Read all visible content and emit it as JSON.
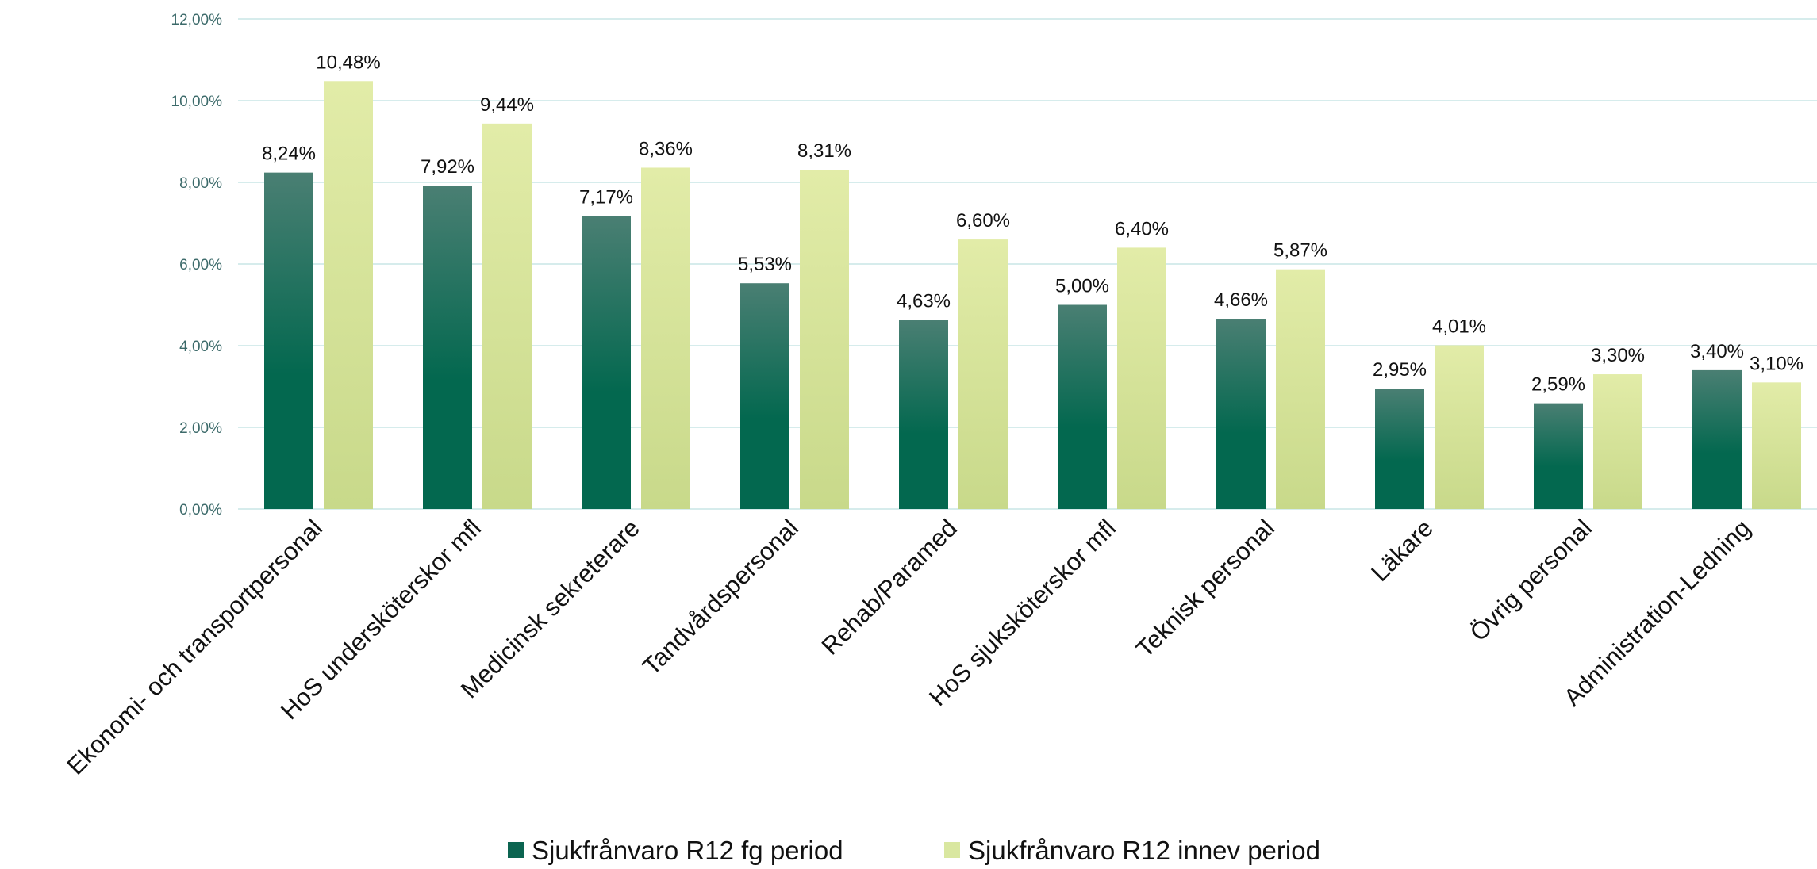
{
  "chart_data": {
    "type": "bar",
    "categories": [
      "Ekonomi- och transportpersonal",
      "HoS undersköterskor mfl",
      "Medicinsk sekreterare",
      "Tandvårdspersonal",
      "Rehab/Paramed",
      "HoS sjuksköterskor mfl",
      "Teknisk personal",
      "Läkare",
      "Övrig personal",
      "Administration-Ledning"
    ],
    "series": [
      {
        "name": "Sjukfrånvaro R12 fg period",
        "values": [
          8.24,
          7.92,
          7.17,
          5.53,
          4.63,
          5.0,
          4.66,
          2.95,
          2.59,
          3.4
        ],
        "labels": [
          "8,24%",
          "7,92%",
          "7,17%",
          "5,53%",
          "4,63%",
          "5,00%",
          "4,66%",
          "2,95%",
          "2,59%",
          "3,40%"
        ],
        "color_top": "#4a7f73",
        "color_bottom": "#03684f"
      },
      {
        "name": "Sjukfrånvaro R12 innev period",
        "values": [
          10.48,
          9.44,
          8.36,
          8.31,
          6.6,
          6.4,
          5.87,
          4.01,
          3.3,
          3.1
        ],
        "labels": [
          "10,48%",
          "9,44%",
          "8,36%",
          "8,31%",
          "6,60%",
          "6,40%",
          "5,87%",
          "4,01%",
          "3,30%",
          "3,10%"
        ],
        "color_top": "#e2eca8",
        "color_bottom": "#c8d98a"
      }
    ],
    "yticks": [
      "0,00%",
      "2,00%",
      "4,00%",
      "6,00%",
      "8,00%",
      "10,00%",
      "12,00%"
    ],
    "ylim": [
      0,
      12
    ],
    "grid": true,
    "legend_position": "bottom",
    "legend_colors": [
      "#0b6450",
      "#d9e7a0"
    ]
  }
}
